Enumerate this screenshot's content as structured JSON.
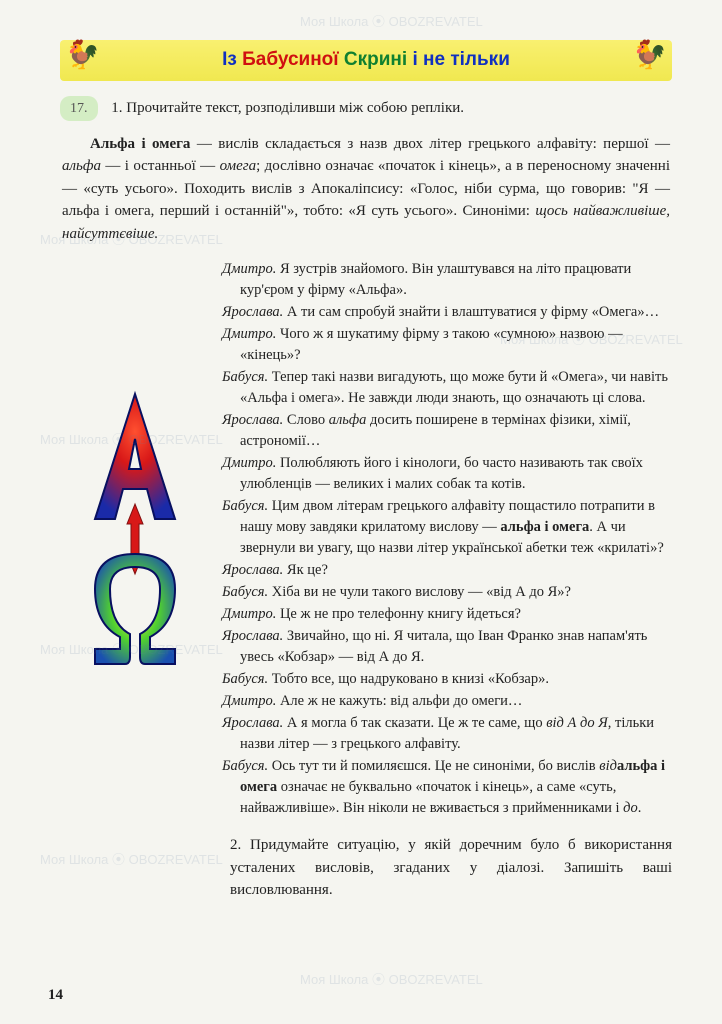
{
  "watermarks": {
    "text": "Моя Школа ⦿ OBOZREVATEL"
  },
  "banner": {
    "word1": "Із",
    "word2": "Бабусиної",
    "word3": "Скрині",
    "word4": "і не тільки",
    "rooster": "🐓"
  },
  "exercise": {
    "number": "17.",
    "task1": "1. Прочитайте текст, розподіливши між собою репліки."
  },
  "intro": {
    "term": "Альфа і омега",
    "body1": " — вислів складається з назв двох літер грецького алфавіту: першої — ",
    "alpha": "альфа",
    "body2": " — і останньої — ",
    "omega": "омега",
    "body3": "; дослівно означає «початок і кінець», а в переносному значенні — «суть усього». Походить вислів з Апокаліпсису: «Голос, ніби сурма, що говорив: \"Я — альфа і омега, перший і останній\"», тобто: «Я суть усього». Синоніми: ",
    "syn": "щось найважливіше, найсуттєвіше."
  },
  "dialogue": [
    {
      "sp": "Дмитро.",
      "tx": " Я зустрів знайомого. Він улаштувався на літо працювати кур'єром у фірму «Альфа»."
    },
    {
      "sp": "Ярослава.",
      "tx": " А ти сам спробуй знайти і влаштуватися у фірму «Омега»…"
    },
    {
      "sp": "Дмитро.",
      "tx": " Чого ж я шукатиму фірму з такою «сумною» назвою — «кінець»?"
    },
    {
      "sp": "Бабуся.",
      "tx": " Тепер такі назви вигадують, що може бути й «Омега», чи навіть «Альфа і омега». Не завжди люди знають, що означають ці слова."
    },
    {
      "sp": "Ярослава.",
      "tx": " Слово ",
      "it": "альфа",
      "tx2": " досить поширене в термінах фізики, хімії, астрономії…"
    },
    {
      "sp": "Дмитро.",
      "tx": " Полюбляють його і кінологи, бо часто називають так своїх улюбленців — великих і малих собак та котів."
    },
    {
      "sp": "Бабуся.",
      "tx": " Цим двом літерам грецького алфавіту пощастило потрапити в нашу мову завдяки крилатому вислову — ",
      "key": "альфа і омега",
      "tx2": ". А чи звернули ви увагу, що назви літер української абетки теж «крилаті»?"
    },
    {
      "sp": "Ярослава.",
      "tx": " Як це?"
    },
    {
      "sp": "Бабуся.",
      "tx": " Хіба ви не чули такого вислову — «від А до Я»?"
    },
    {
      "sp": "Дмитро.",
      "tx": " Це ж не про телефонну книгу йдеться?"
    },
    {
      "sp": "Ярослава.",
      "tx": " Звичайно, що ні. Я читала, що Іван Франко знав напам'ять увесь «Кобзар» — від А до Я."
    },
    {
      "sp": "Бабуся.",
      "tx": " Тобто все, що надруковано в книзі «Кобзар»."
    },
    {
      "sp": "Дмитро.",
      "tx": " Але ж не кажуть: від альфи до омеги…"
    },
    {
      "sp": "Ярослава.",
      "tx": " А я могла б так сказати. Це ж те саме, що ",
      "it": "від А до Я",
      "tx2": ", тільки назви літер — з грецького алфавіту."
    },
    {
      "sp": "Бабуся.",
      "tx": " Ось тут ти й помиляєшся. Це не синоніми, бо вислів ",
      "key": "альфа і омега",
      "tx2": " означає не буквально «початок і кінець», а саме «суть, найважливіше». Він ніколи не вживається з прийменниками ",
      "it": "від",
      "tx3": " і ",
      "it2": "до",
      "tx4": "."
    }
  ],
  "task2": "2. Придумайте ситуацію, у якій доречним було б використання усталених висловів, згаданих у діалозі. Запишіть ваші висловлювання.",
  "pagenum": "14",
  "illustration_colors": {
    "top": "#d81818",
    "a_fill": "#1a2aa8",
    "mid": "#50d030",
    "omega": "#e8d020",
    "bottom": "#1a50b0"
  }
}
